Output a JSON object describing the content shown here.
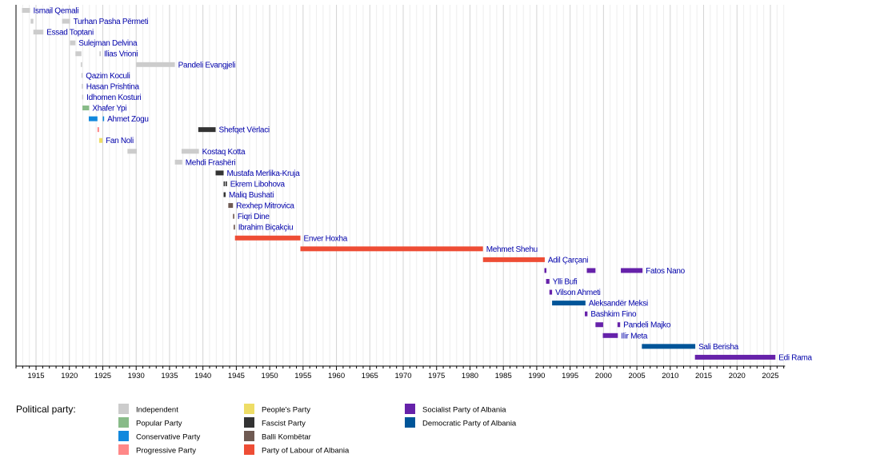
{
  "chart_data": {
    "type": "timeline",
    "xlim": [
      1912,
      2027.2
    ],
    "x_ticks_major": [
      1915,
      1920,
      1925,
      1930,
      1935,
      1940,
      1945,
      1950,
      1955,
      1960,
      1965,
      1970,
      1975,
      1980,
      1985,
      1990,
      1995,
      2000,
      2005,
      2010,
      2015,
      2020,
      2025
    ],
    "grid": true,
    "legend_title": "Political party:",
    "legend_placement": "bottom",
    "parties": [
      {
        "key": "ind",
        "name": "Independent",
        "color": "#cccccc"
      },
      {
        "key": "pop",
        "name": "Popular Party",
        "color": "#88bb88"
      },
      {
        "key": "con",
        "name": "Conservative Party",
        "color": "#1188dd"
      },
      {
        "key": "pro",
        "name": "Progressive Party",
        "color": "#ff8888"
      },
      {
        "key": "ppl",
        "name": "People's Party",
        "color": "#eedd66"
      },
      {
        "key": "fas",
        "name": "Fascist Party",
        "color": "#333333"
      },
      {
        "key": "bal",
        "name": "Balli Kombëtar",
        "color": "#6f5a52"
      },
      {
        "key": "pla",
        "name": "Party of Labour of Albania",
        "color": "#ee4d35"
      },
      {
        "key": "sp",
        "name": "Socialist Party of Albania",
        "color": "#6622aa"
      },
      {
        "key": "dp",
        "name": "Democratic Party of Albania",
        "color": "#005599"
      }
    ],
    "rows": [
      {
        "name": "Ismail Qemali",
        "terms": [
          [
            1912.9,
            1914.1,
            "ind"
          ]
        ]
      },
      {
        "name": "Turhan Pasha Përmeti",
        "terms": [
          [
            1914.2,
            1914.6,
            "ind"
          ],
          [
            1918.9,
            1920.1,
            "ind"
          ]
        ]
      },
      {
        "name": "Essad Toptani",
        "terms": [
          [
            1914.6,
            1916.1,
            "ind"
          ]
        ]
      },
      {
        "name": "Sulejman Delvina",
        "terms": [
          [
            1920.1,
            1920.9,
            "ind"
          ]
        ]
      },
      {
        "name": "Ilias Vrioni",
        "terms": [
          [
            1920.9,
            1921.8,
            "ind"
          ],
          [
            1924.5,
            1924.7,
            "ind"
          ]
        ]
      },
      {
        "name": "Pandeli Evangjeli",
        "terms": [
          [
            1921.7,
            1921.9,
            "ind"
          ],
          [
            1930.0,
            1935.8,
            "ind"
          ]
        ]
      },
      {
        "name": "Qazim Koculi",
        "terms": [
          [
            1921.8,
            1921.95,
            "ind"
          ]
        ]
      },
      {
        "name": "Hasan Prishtina",
        "terms": [
          [
            1921.85,
            1922.0,
            "ind"
          ]
        ]
      },
      {
        "name": "Idhomen Kosturi",
        "terms": [
          [
            1921.9,
            1922.05,
            "ind"
          ]
        ]
      },
      {
        "name": "Xhafer Ypi",
        "terms": [
          [
            1921.95,
            1922.95,
            "pop"
          ]
        ]
      },
      {
        "name": "Ahmet Zogu",
        "terms": [
          [
            1922.9,
            1924.2,
            "con"
          ],
          [
            1925.0,
            1925.2,
            "con"
          ]
        ]
      },
      {
        "name": "Shefqet Vërlaci",
        "terms": [
          [
            1924.2,
            1924.45,
            "pro"
          ],
          [
            1939.3,
            1941.9,
            "fas"
          ]
        ]
      },
      {
        "name": "Fan Noli",
        "terms": [
          [
            1924.45,
            1924.95,
            "ppl"
          ]
        ]
      },
      {
        "name": "Kostaq Kotta",
        "terms": [
          [
            1928.7,
            1930.1,
            "ind"
          ],
          [
            1936.8,
            1939.4,
            "ind"
          ]
        ]
      },
      {
        "name": "Mehdi Frashëri",
        "terms": [
          [
            1935.8,
            1936.9,
            "ind"
          ]
        ]
      },
      {
        "name": "Mustafa Merlika-Kruja",
        "terms": [
          [
            1941.9,
            1943.1,
            "fas"
          ]
        ]
      },
      {
        "name": "Ekrem Libohova",
        "terms": [
          [
            1943.1,
            1943.3,
            "fas"
          ],
          [
            1943.4,
            1943.6,
            "fas"
          ]
        ]
      },
      {
        "name": "Maliq Bushati",
        "terms": [
          [
            1943.1,
            1943.4,
            "fas"
          ]
        ]
      },
      {
        "name": "Rexhep Mitrovica",
        "terms": [
          [
            1943.8,
            1944.5,
            "bal"
          ]
        ]
      },
      {
        "name": "Fiqri Dine",
        "terms": [
          [
            1944.5,
            1944.7,
            "bal"
          ]
        ]
      },
      {
        "name": "Ibrahim Biçakçiu",
        "terms": [
          [
            1944.6,
            1944.8,
            "bal"
          ]
        ]
      },
      {
        "name": "Enver Hoxha",
        "terms": [
          [
            1944.8,
            1954.6,
            "pla"
          ]
        ]
      },
      {
        "name": "Mehmet Shehu",
        "terms": [
          [
            1954.6,
            1981.95,
            "pla"
          ]
        ]
      },
      {
        "name": "Adil Çarçani",
        "terms": [
          [
            1981.95,
            1991.2,
            "pla"
          ]
        ]
      },
      {
        "name": "Fatos Nano",
        "terms": [
          [
            1991.15,
            1991.45,
            "sp"
          ],
          [
            1997.5,
            1998.8,
            "sp"
          ],
          [
            2002.6,
            2005.85,
            "sp"
          ]
        ]
      },
      {
        "name": "Ylli Bufi",
        "terms": [
          [
            1991.4,
            1991.9,
            "sp"
          ]
        ]
      },
      {
        "name": "Vilson Ahmeti",
        "terms": [
          [
            1991.9,
            1992.3,
            "sp"
          ]
        ]
      },
      {
        "name": "Aleksandër Meksi",
        "terms": [
          [
            1992.3,
            1997.3,
            "dp"
          ]
        ]
      },
      {
        "name": "Bashkim Fino",
        "terms": [
          [
            1997.2,
            1997.6,
            "sp"
          ]
        ]
      },
      {
        "name": "Pandeli Majko",
        "terms": [
          [
            1998.8,
            1999.95,
            "sp"
          ],
          [
            2002.1,
            2002.5,
            "sp"
          ]
        ]
      },
      {
        "name": "Ilir Meta",
        "terms": [
          [
            1999.9,
            2002.15,
            "sp"
          ]
        ]
      },
      {
        "name": "Sali Berisha",
        "terms": [
          [
            2005.75,
            2013.75,
            "dp"
          ]
        ]
      },
      {
        "name": "Edi Rama",
        "terms": [
          [
            2013.7,
            2025.75,
            "sp"
          ]
        ]
      }
    ]
  }
}
